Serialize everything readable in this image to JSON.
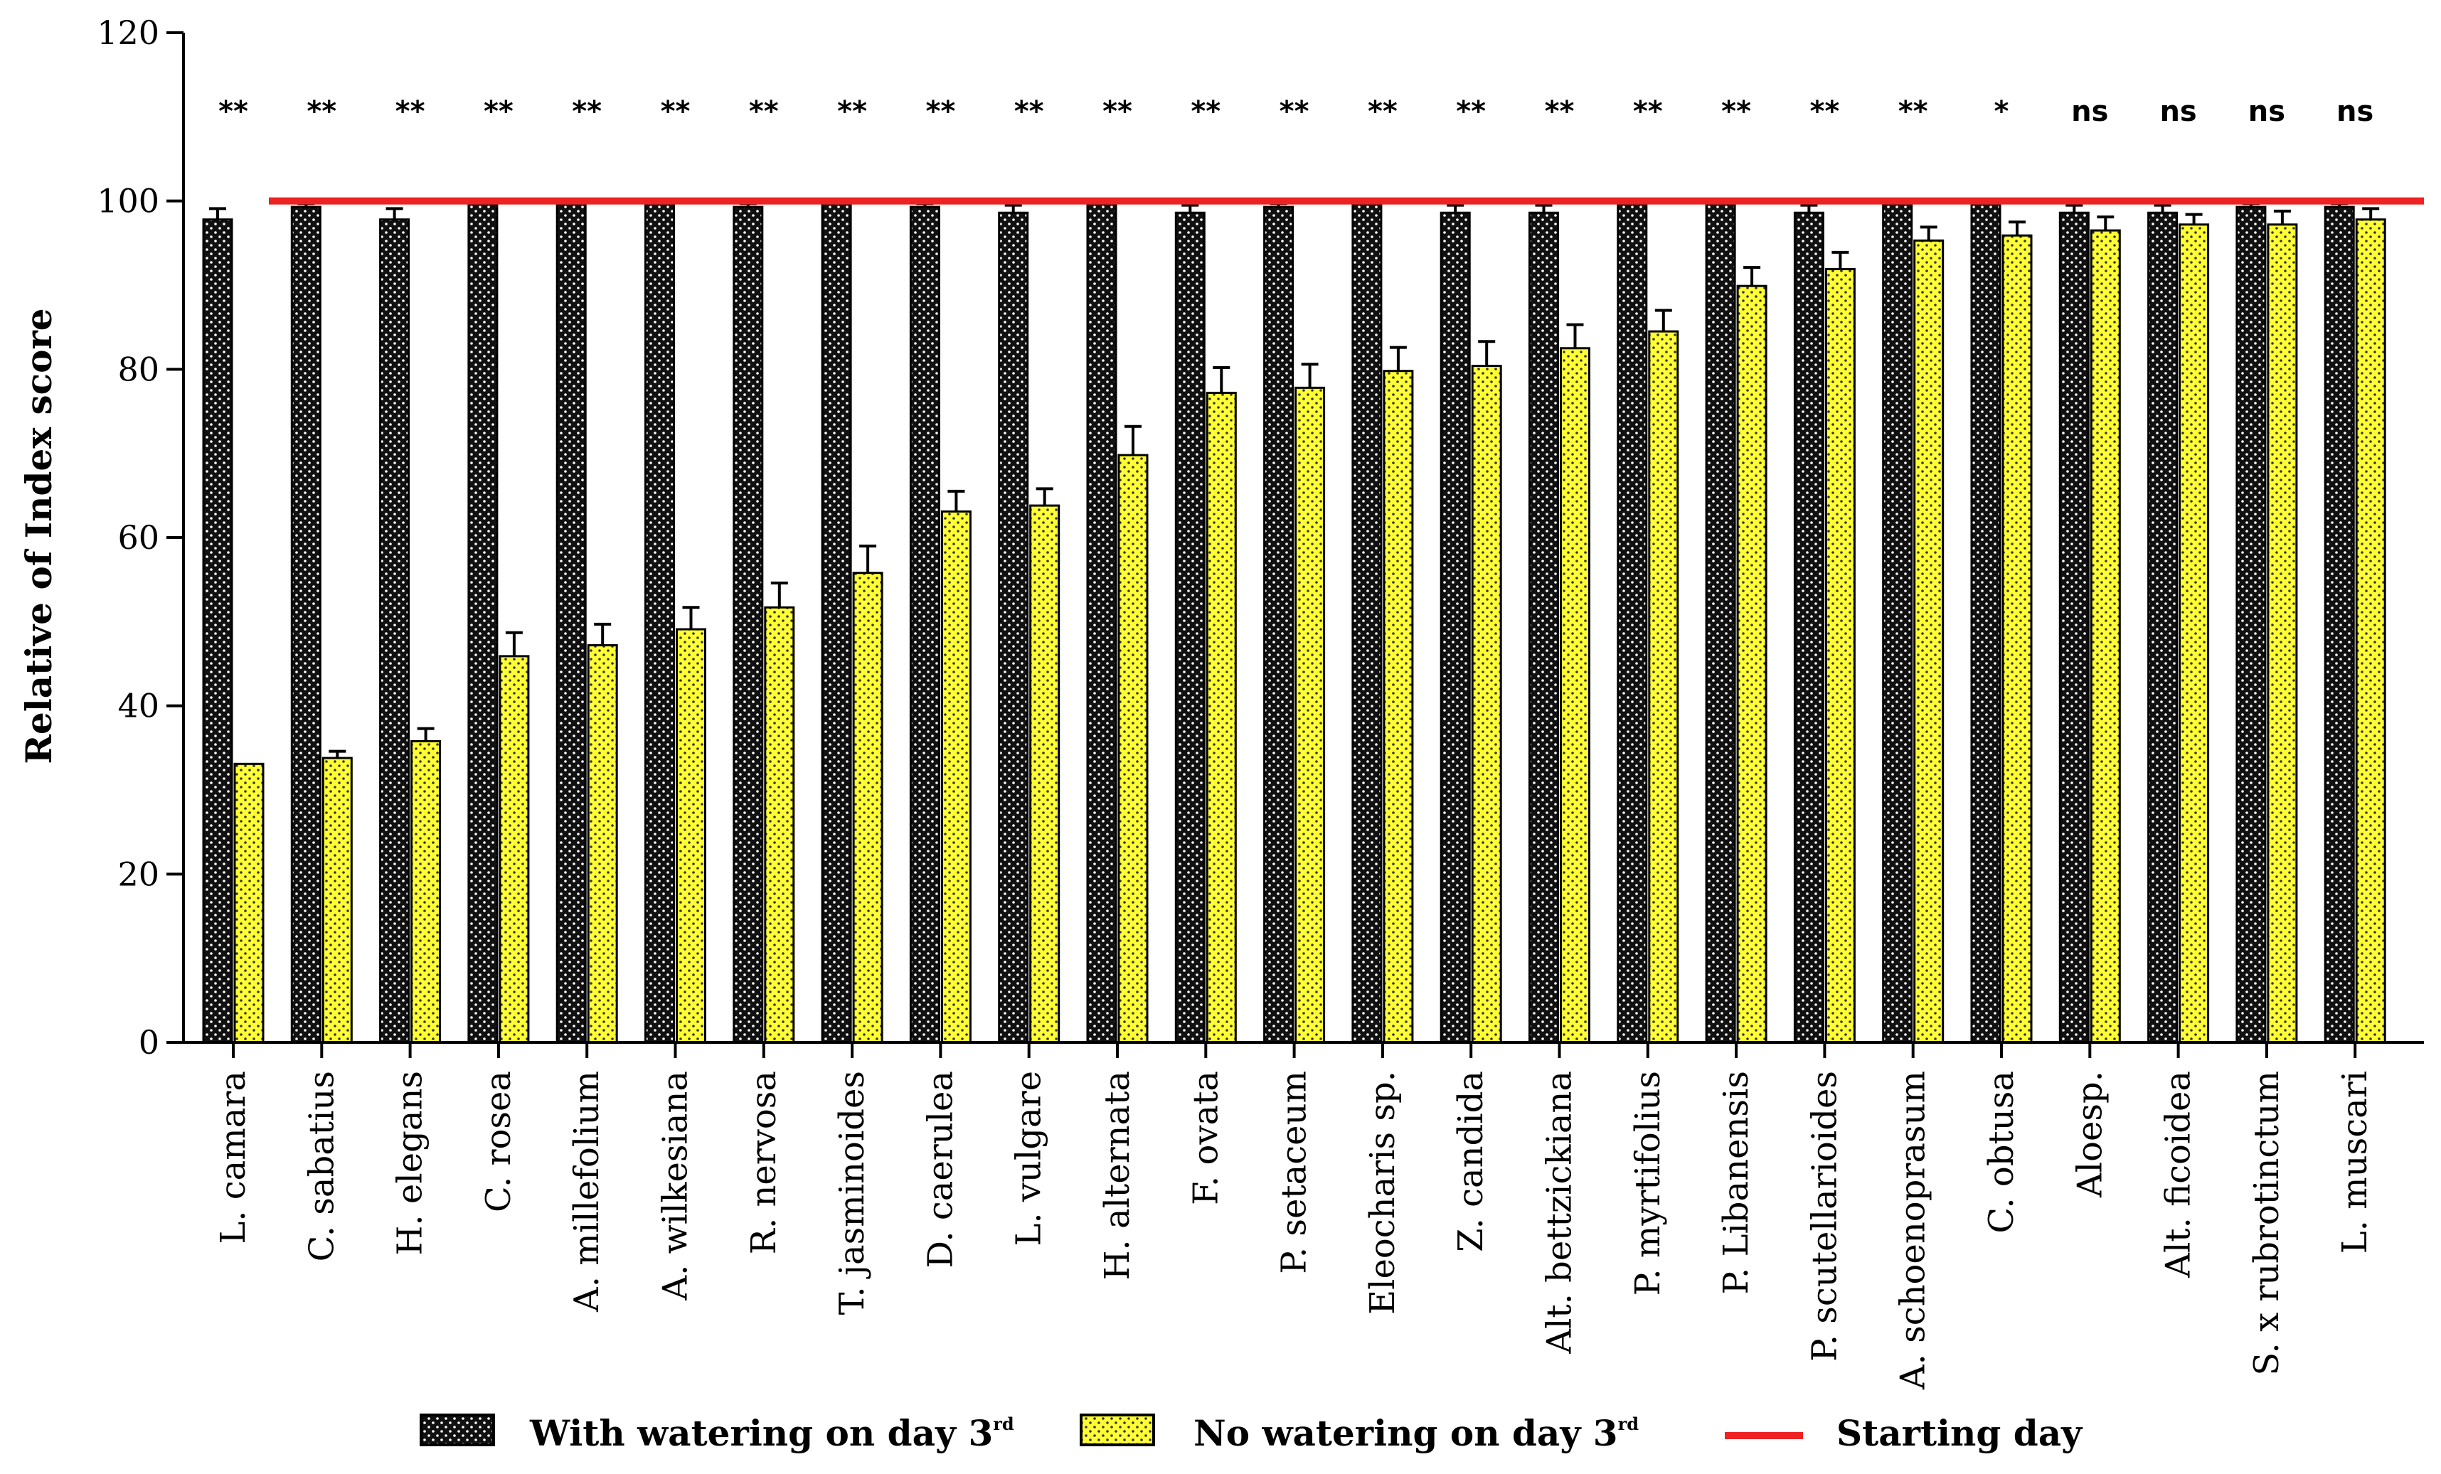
{
  "chart_data": {
    "type": "bar",
    "title": "",
    "xlabel": "",
    "ylabel": "Relative of Index score",
    "ylim": [
      0,
      120
    ],
    "yticks": [
      0,
      20,
      40,
      60,
      80,
      100,
      120
    ],
    "categories": [
      "L. camara",
      "C. sabatius",
      "H. elegans",
      "C. rosea",
      "A. millefolium",
      "A. wilkesiana",
      "R. nervosa",
      "T. jasminoides",
      "D. caerulea",
      "L. vulgare",
      "H. alternata",
      "F. ovata",
      "P. setaceum",
      "Eleocharis sp.",
      "Z. candida",
      "Alt. bettzickiana",
      "P. myrtifolius",
      "P. Libanensis",
      "P. scutellarioides",
      "A. schoenoprasum",
      "C. obtusa",
      "Aloesp.",
      "Alt. ficoidea",
      "S. x rubrotinctum",
      "L. muscari"
    ],
    "series": [
      {
        "name": "With watering on day 3",
        "name_sup": "rd",
        "color": "#111111",
        "dot_color": "#ffffff",
        "values": [
          97.8,
          99.3,
          97.8,
          99.8,
          99.8,
          99.8,
          99.3,
          99.8,
          99.3,
          98.6,
          99.8,
          98.6,
          99.3,
          99.8,
          98.6,
          98.6,
          99.8,
          99.8,
          98.6,
          99.8,
          99.8,
          98.6,
          98.6,
          99.3,
          99.3
        ],
        "errors": [
          1.3,
          0.4,
          1.3,
          0.2,
          0.2,
          0.2,
          0.4,
          0.2,
          0.4,
          0.9,
          0.2,
          0.9,
          0.4,
          0.2,
          0.9,
          0.9,
          0.2,
          0.2,
          0.9,
          0.2,
          0.2,
          0.9,
          0.9,
          0.4,
          0.4
        ]
      },
      {
        "name": "No watering on day 3",
        "name_sup": "rd",
        "color": "#ffff33",
        "dot_color": "#333333",
        "values": [
          33.1,
          33.8,
          35.8,
          45.9,
          47.2,
          49.1,
          51.7,
          55.8,
          63.1,
          63.8,
          69.8,
          77.2,
          77.8,
          79.8,
          80.4,
          82.5,
          84.5,
          89.9,
          91.9,
          95.3,
          95.9,
          96.5,
          97.2,
          97.2,
          97.8
        ],
        "errors": [
          0.0,
          0.8,
          1.5,
          2.8,
          2.5,
          2.6,
          2.9,
          3.2,
          2.4,
          2.0,
          3.4,
          3.0,
          2.8,
          2.8,
          2.9,
          2.8,
          2.5,
          2.2,
          2.0,
          1.6,
          1.6,
          1.6,
          1.2,
          1.6,
          1.3
        ]
      }
    ],
    "significance": [
      "**",
      "**",
      "**",
      "**",
      "**",
      "**",
      "**",
      "**",
      "**",
      "**",
      "**",
      "**",
      "**",
      "**",
      "**",
      "**",
      "**",
      "**",
      "**",
      "**",
      "*",
      "ns",
      "ns",
      "ns",
      "ns"
    ],
    "reference_line": {
      "name": "Starting day",
      "value": 100,
      "color": "#ee2222"
    },
    "legend": {
      "position": "bottom"
    }
  }
}
